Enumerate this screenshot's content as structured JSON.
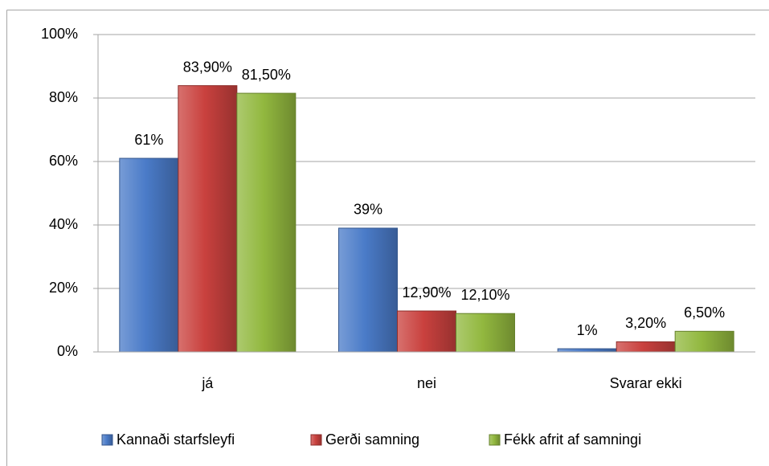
{
  "chart_data": {
    "type": "bar",
    "categories": [
      "já",
      "nei",
      "Svarar ekki"
    ],
    "series": [
      {
        "name": "Kannaði starfsleyfi",
        "color": "#4a7bc8",
        "values": [
          61,
          39,
          1
        ],
        "value_labels": [
          "61%",
          "39%",
          "1%"
        ]
      },
      {
        "name": "Gerði samning",
        "color": "#c9413e",
        "values": [
          83.9,
          12.9,
          3.2
        ],
        "value_labels": [
          "83,90%",
          "12,90%",
          "3,20%"
        ]
      },
      {
        "name": "Fékk afrit af samningi",
        "color": "#92b83f",
        "values": [
          81.5,
          12.1,
          6.5
        ],
        "value_labels": [
          "81,50%",
          "12,10%",
          "6,50%"
        ]
      }
    ],
    "ylim": [
      0,
      100
    ],
    "yticks": [
      {
        "value": 0,
        "label": "0%"
      },
      {
        "value": 20,
        "label": "20%"
      },
      {
        "value": 40,
        "label": "40%"
      },
      {
        "value": 60,
        "label": "60%"
      },
      {
        "value": 80,
        "label": "80%"
      },
      {
        "value": 100,
        "label": "100%"
      }
    ],
    "grid": true,
    "legend": "bottom"
  }
}
